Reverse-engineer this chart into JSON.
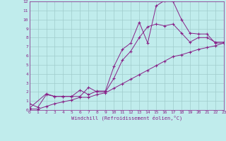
{
  "background_color": "#c0ecec",
  "grid_color": "#a0cccc",
  "line_color": "#882288",
  "xlim": [
    0,
    23
  ],
  "ylim": [
    0,
    12
  ],
  "xtick_vals": [
    0,
    1,
    2,
    3,
    4,
    5,
    6,
    7,
    8,
    9,
    10,
    11,
    12,
    13,
    14,
    15,
    16,
    17,
    18,
    19,
    20,
    21,
    22,
    23
  ],
  "ytick_vals": [
    0,
    1,
    2,
    3,
    4,
    5,
    6,
    7,
    8,
    9,
    10,
    11,
    12
  ],
  "xlabel": "Windchill (Refroidissement éolien,°C)",
  "line1_x": [
    0,
    1,
    2,
    3,
    4,
    5,
    6,
    7,
    8,
    9,
    10,
    11,
    12,
    13,
    14,
    15,
    16,
    17,
    18,
    19,
    20,
    21,
    22,
    23
  ],
  "line1_y": [
    0.7,
    0.3,
    1.7,
    1.5,
    1.5,
    1.5,
    2.2,
    1.7,
    2.1,
    2.1,
    4.8,
    6.7,
    7.4,
    9.7,
    7.4,
    11.5,
    12.1,
    12.0,
    10.0,
    8.5,
    8.4,
    8.4,
    7.4,
    7.4
  ],
  "line2_x": [
    0,
    2,
    3,
    4,
    5,
    6,
    7,
    8,
    9,
    10,
    11,
    12,
    13,
    14,
    15,
    16,
    17,
    18,
    19,
    20,
    21,
    22,
    23
  ],
  "line2_y": [
    0.2,
    1.8,
    1.5,
    1.5,
    1.5,
    1.5,
    2.5,
    2.0,
    2.0,
    3.5,
    5.5,
    6.5,
    8.0,
    9.2,
    9.5,
    9.3,
    9.5,
    8.5,
    7.5,
    8.0,
    8.0,
    7.5,
    7.5
  ],
  "line3_x": [
    0,
    1,
    2,
    3,
    4,
    5,
    6,
    7,
    8,
    9,
    10,
    11,
    12,
    13,
    14,
    15,
    16,
    17,
    18,
    19,
    20,
    21,
    22,
    23
  ],
  "line3_y": [
    0.1,
    0.1,
    0.4,
    0.7,
    0.9,
    1.1,
    1.4,
    1.4,
    1.7,
    1.9,
    2.4,
    2.9,
    3.4,
    3.9,
    4.4,
    4.9,
    5.4,
    5.9,
    6.1,
    6.4,
    6.7,
    6.9,
    7.1,
    7.4
  ],
  "lw": 0.7,
  "ms": 3.0,
  "tick_fontsize": 4.5,
  "label_fontsize": 5.0
}
